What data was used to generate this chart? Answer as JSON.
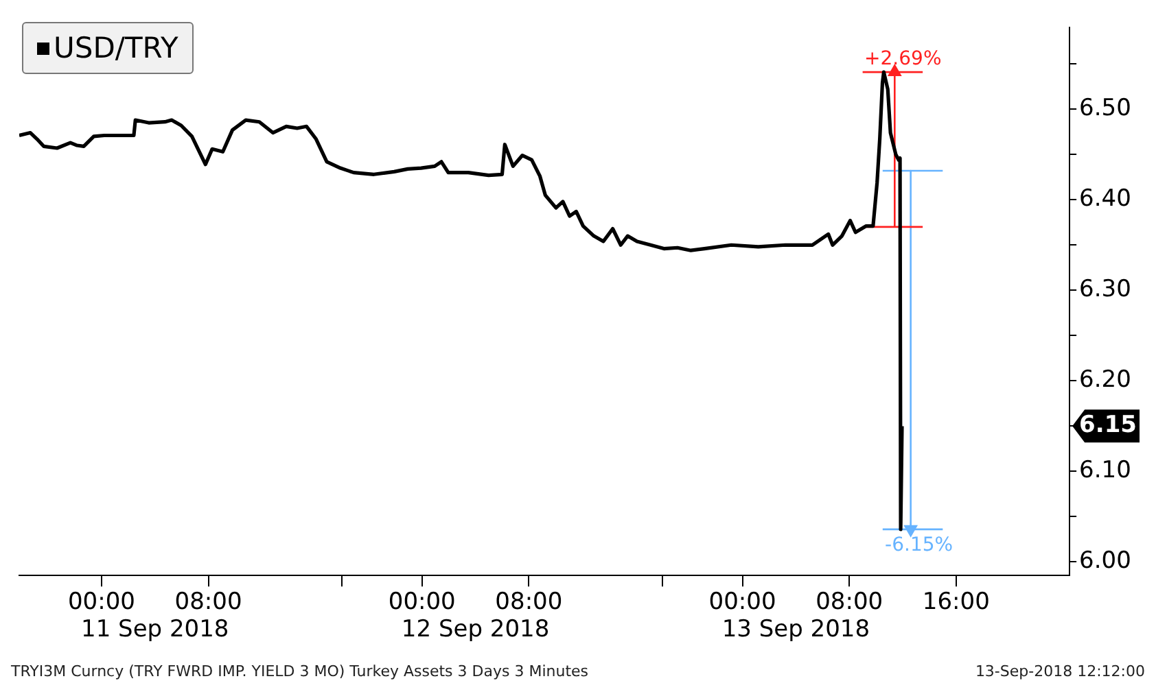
{
  "chart_data": {
    "type": "line",
    "legend": "top left",
    "x": [
      "2018-09-10T17:50",
      "2018-09-10T18:40",
      "2018-09-10T19:10",
      "2018-09-10T19:40",
      "2018-09-10T20:40",
      "2018-09-10T21:40",
      "2018-09-10T22:10",
      "2018-09-10T22:40",
      "2018-09-10T23:25",
      "2018-09-11T00:12",
      "2018-09-11T02:25",
      "2018-09-11T02:32",
      "2018-09-11T03:32",
      "2018-09-11T04:45",
      "2018-09-11T05:15",
      "2018-09-11T05:58",
      "2018-09-11T06:46",
      "2018-09-11T07:47",
      "2018-09-11T08:17",
      "2018-09-11T09:05",
      "2018-09-11T09:48",
      "2018-09-11T10:48",
      "2018-09-11T11:49",
      "2018-09-11T12:50",
      "2018-09-11T13:50",
      "2018-09-11T14:39",
      "2018-09-11T15:21",
      "2018-09-11T16:04",
      "2018-09-11T16:52",
      "2018-09-11T17:53",
      "2018-09-11T18:53",
      "2018-09-11T20:24",
      "2018-09-11T21:55",
      "2018-09-11T22:56",
      "2018-09-11T23:56",
      "2018-09-12T00:57",
      "2018-09-12T01:27",
      "2018-09-12T01:58",
      "2018-09-12T03:28",
      "2018-09-12T04:59",
      "2018-09-12T06:00",
      "2018-09-12T06:12",
      "2018-09-12T06:49",
      "2018-09-12T07:31",
      "2018-09-12T08:13",
      "2018-09-12T08:50",
      "2018-09-12T09:14",
      "2018-09-12T10:02",
      "2018-09-12T10:33",
      "2018-09-12T11:03",
      "2018-09-12T11:33",
      "2018-09-12T12:04",
      "2018-09-12T12:52",
      "2018-09-12T13:35",
      "2018-09-12T14:17",
      "2018-09-12T14:53",
      "2018-09-12T15:24",
      "2018-09-12T16:06",
      "2018-09-12T17:07",
      "2018-09-12T18:07",
      "2018-09-12T19:08",
      "2018-09-12T20:08",
      "2018-09-12T21:09",
      "2018-09-12T23:10",
      "2018-09-13T01:11",
      "2018-09-13T03:13",
      "2018-09-13T05:14",
      "2018-09-13T06:26",
      "2018-09-13T06:45",
      "2018-09-13T07:27",
      "2018-09-13T08:04",
      "2018-09-13T08:28",
      "2018-09-13T09:16",
      "2018-09-13T09:47",
      "2018-09-13T10:05",
      "2018-09-13T10:17",
      "2018-09-13T10:29",
      "2018-09-13T10:35",
      "2018-09-13T10:53",
      "2018-09-13T11:05",
      "2018-09-13T11:29",
      "2018-09-13T11:42",
      "2018-09-13T11:48",
      "2018-09-13T11:51",
      "2018-09-13T11:57"
    ],
    "series": [
      {
        "name": "USD/TRY",
        "color": "#000000",
        "values": [
          6.471,
          6.474,
          6.467,
          6.459,
          6.457,
          6.463,
          6.46,
          6.459,
          6.47,
          6.471,
          6.471,
          6.488,
          6.485,
          6.486,
          6.488,
          6.482,
          6.47,
          6.439,
          6.456,
          6.453,
          6.477,
          6.488,
          6.486,
          6.474,
          6.481,
          6.479,
          6.481,
          6.467,
          6.442,
          6.435,
          6.43,
          6.428,
          6.431,
          6.434,
          6.435,
          6.437,
          6.442,
          6.43,
          6.43,
          6.427,
          6.428,
          6.461,
          6.437,
          6.449,
          6.444,
          6.426,
          6.405,
          6.391,
          6.398,
          6.382,
          6.387,
          6.371,
          6.36,
          6.354,
          6.368,
          6.35,
          6.36,
          6.354,
          6.35,
          6.346,
          6.347,
          6.344,
          6.346,
          6.35,
          6.348,
          6.35,
          6.35,
          6.362,
          6.35,
          6.36,
          6.377,
          6.364,
          6.371,
          6.371,
          6.419,
          6.467,
          6.529,
          6.541,
          6.522,
          6.474,
          6.45,
          6.444,
          6.446,
          6.036,
          6.15
        ],
        "line_style": "solid"
      },
      {
        "color": "#ff2020",
        "marker": "triangle",
        "x": [
          "2018-09-13T11:24",
          "2018-09-13T11:24"
        ],
        "values": [
          6.37,
          6.541
        ]
      },
      {
        "color": "#ff2020",
        "x": [
          "2018-09-13T09:00",
          "2018-09-13T13:30"
        ],
        "values": [
          6.37,
          6.37
        ]
      },
      {
        "color": "#ff2020",
        "x": [
          "2018-09-13T09:00",
          "2018-09-13T13:30"
        ],
        "values": [
          6.541,
          6.541
        ]
      },
      {
        "color": "#66b3ff",
        "marker": "triangle",
        "x": [
          "2018-09-13T12:36",
          "2018-09-13T12:36"
        ],
        "values": [
          6.432,
          6.036
        ]
      },
      {
        "color": "#66b3ff",
        "x": [
          "2018-09-13T10:30",
          "2018-09-13T15:00"
        ],
        "values": [
          6.432,
          6.432
        ]
      },
      {
        "color": "#66b3ff",
        "x": [
          "2018-09-13T10:30",
          "2018-09-13T15:00"
        ],
        "values": [
          6.036,
          6.036
        ]
      }
    ],
    "xlim": [
      "2018-09-10T17:50",
      "2018-09-14T00:30"
    ],
    "xticks": [
      {
        "value": "2018-09-11T00:00",
        "label": "00:00"
      },
      {
        "value": "2018-09-11T08:00",
        "label": "08:00"
      },
      {
        "value": "2018-09-11T18:00",
        "label": null
      },
      {
        "value": "2018-09-12T00:00",
        "label": "00:00"
      },
      {
        "value": "2018-09-12T08:00",
        "label": "08:00"
      },
      {
        "value": "2018-09-12T18:00",
        "label": null
      },
      {
        "value": "2018-09-13T00:00",
        "label": "00:00"
      },
      {
        "value": "2018-09-13T08:00",
        "label": "08:00"
      },
      {
        "value": "2018-09-13T16:00",
        "label": "16:00"
      }
    ],
    "ylim": [
      5.985,
      6.59
    ],
    "yticks": [
      {
        "value": 6,
        "label": "6.00"
      },
      {
        "value": 6.05,
        "label": null
      },
      {
        "value": 6.1,
        "label": "6.10"
      },
      {
        "value": 6.15,
        "label": "6.15"
      },
      {
        "value": 6.2,
        "label": "6.20"
      },
      {
        "value": 6.25,
        "label": null
      },
      {
        "value": 6.3,
        "label": "6.30"
      },
      {
        "value": 6.35,
        "label": null
      },
      {
        "value": 6.4,
        "label": "6.40"
      },
      {
        "value": 6.45,
        "label": null
      },
      {
        "value": 6.5,
        "label": "6.50"
      },
      {
        "value": 6.55,
        "label": null
      }
    ],
    "annotations": [
      {
        "text": "+2.69%",
        "x": "2018-09-13T11:24",
        "y": 6.541
      },
      {
        "text": "-6.15%",
        "x": "2018-09-13T12:36",
        "y": 6.036
      },
      "11 Sep 2018",
      "12 Sep 2018",
      "13 Sep 2018",
      "TRYI3M Curncy (TRY FWRD IMP. YIELD 3 MO) Turkey Assets 3 Days 3 Minutes",
      "13-Sep-2018 12:12:00"
    ]
  }
}
